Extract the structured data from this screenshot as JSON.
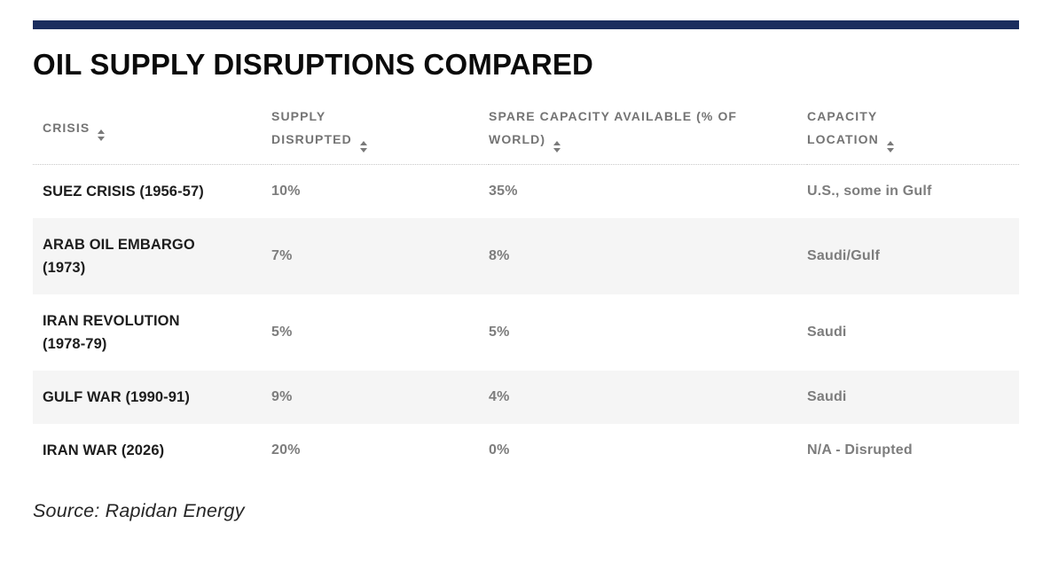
{
  "header": {
    "title": "OIL SUPPLY DISRUPTIONS COMPARED"
  },
  "colors": {
    "accent_bar": "#1b2d5e",
    "alt_row_background": "#f5f5f5",
    "column_header_text": "#747474",
    "data_text": "#7d7d7d",
    "crisis_text": "#1d1d1d"
  },
  "table": {
    "columns": [
      {
        "id": "crisis",
        "label": "CRISIS",
        "sort_icon": "up-down-arrows"
      },
      {
        "id": "supply_disrupted",
        "label": "SUPPLY DISRUPTED",
        "sort_icon": "up-down-arrows"
      },
      {
        "id": "spare_capacity",
        "label": "SPARE CAPACITY AVAILABLE (% OF WORLD)",
        "sort_icon": "up-down-arrows"
      },
      {
        "id": "capacity_location",
        "label": "CAPACITY LOCATION",
        "sort_icon": "up-down-arrows"
      }
    ],
    "rows": [
      {
        "crisis": "SUEZ CRISIS (1956-57)",
        "supply_disrupted": "10%",
        "spare_capacity": "35%",
        "capacity_location": "U.S., some in Gulf"
      },
      {
        "crisis": "ARAB OIL EMBARGO (1973)",
        "supply_disrupted": "7%",
        "spare_capacity": "8%",
        "capacity_location": "Saudi/Gulf"
      },
      {
        "crisis": "IRAN REVOLUTION (1978-79)",
        "supply_disrupted": "5%",
        "spare_capacity": "5%",
        "capacity_location": "Saudi"
      },
      {
        "crisis": "GULF WAR (1990-91)",
        "supply_disrupted": "9%",
        "spare_capacity": "4%",
        "capacity_location": "Saudi"
      },
      {
        "crisis": "IRAN WAR (2026)",
        "supply_disrupted": "20%",
        "spare_capacity": "0%",
        "capacity_location": "N/A - Disrupted"
      }
    ]
  },
  "footer": {
    "source": "Source: Rapidan Energy"
  },
  "chart_data": {
    "type": "table",
    "title": "OIL SUPPLY DISRUPTIONS COMPARED",
    "columns": [
      "CRISIS",
      "SUPPLY DISRUPTED",
      "SPARE CAPACITY AVAILABLE (% OF WORLD)",
      "CAPACITY LOCATION"
    ],
    "rows": [
      [
        "SUEZ CRISIS (1956-57)",
        "10%",
        "35%",
        "U.S., some in Gulf"
      ],
      [
        "ARAB OIL EMBARGO (1973)",
        "7%",
        "8%",
        "Saudi/Gulf"
      ],
      [
        "IRAN REVOLUTION (1978-79)",
        "5%",
        "5%",
        "Saudi"
      ],
      [
        "GULF WAR (1990-91)",
        "9%",
        "4%",
        "Saudi"
      ],
      [
        "IRAN WAR (2026)",
        "20%",
        "0%",
        "N/A - Disrupted"
      ]
    ],
    "source": "Source: Rapidan Energy",
    "layout_hints": "sortable column headers with up/down arrows, dotted rule under header, alternating row shading on rows 2 and 4"
  }
}
